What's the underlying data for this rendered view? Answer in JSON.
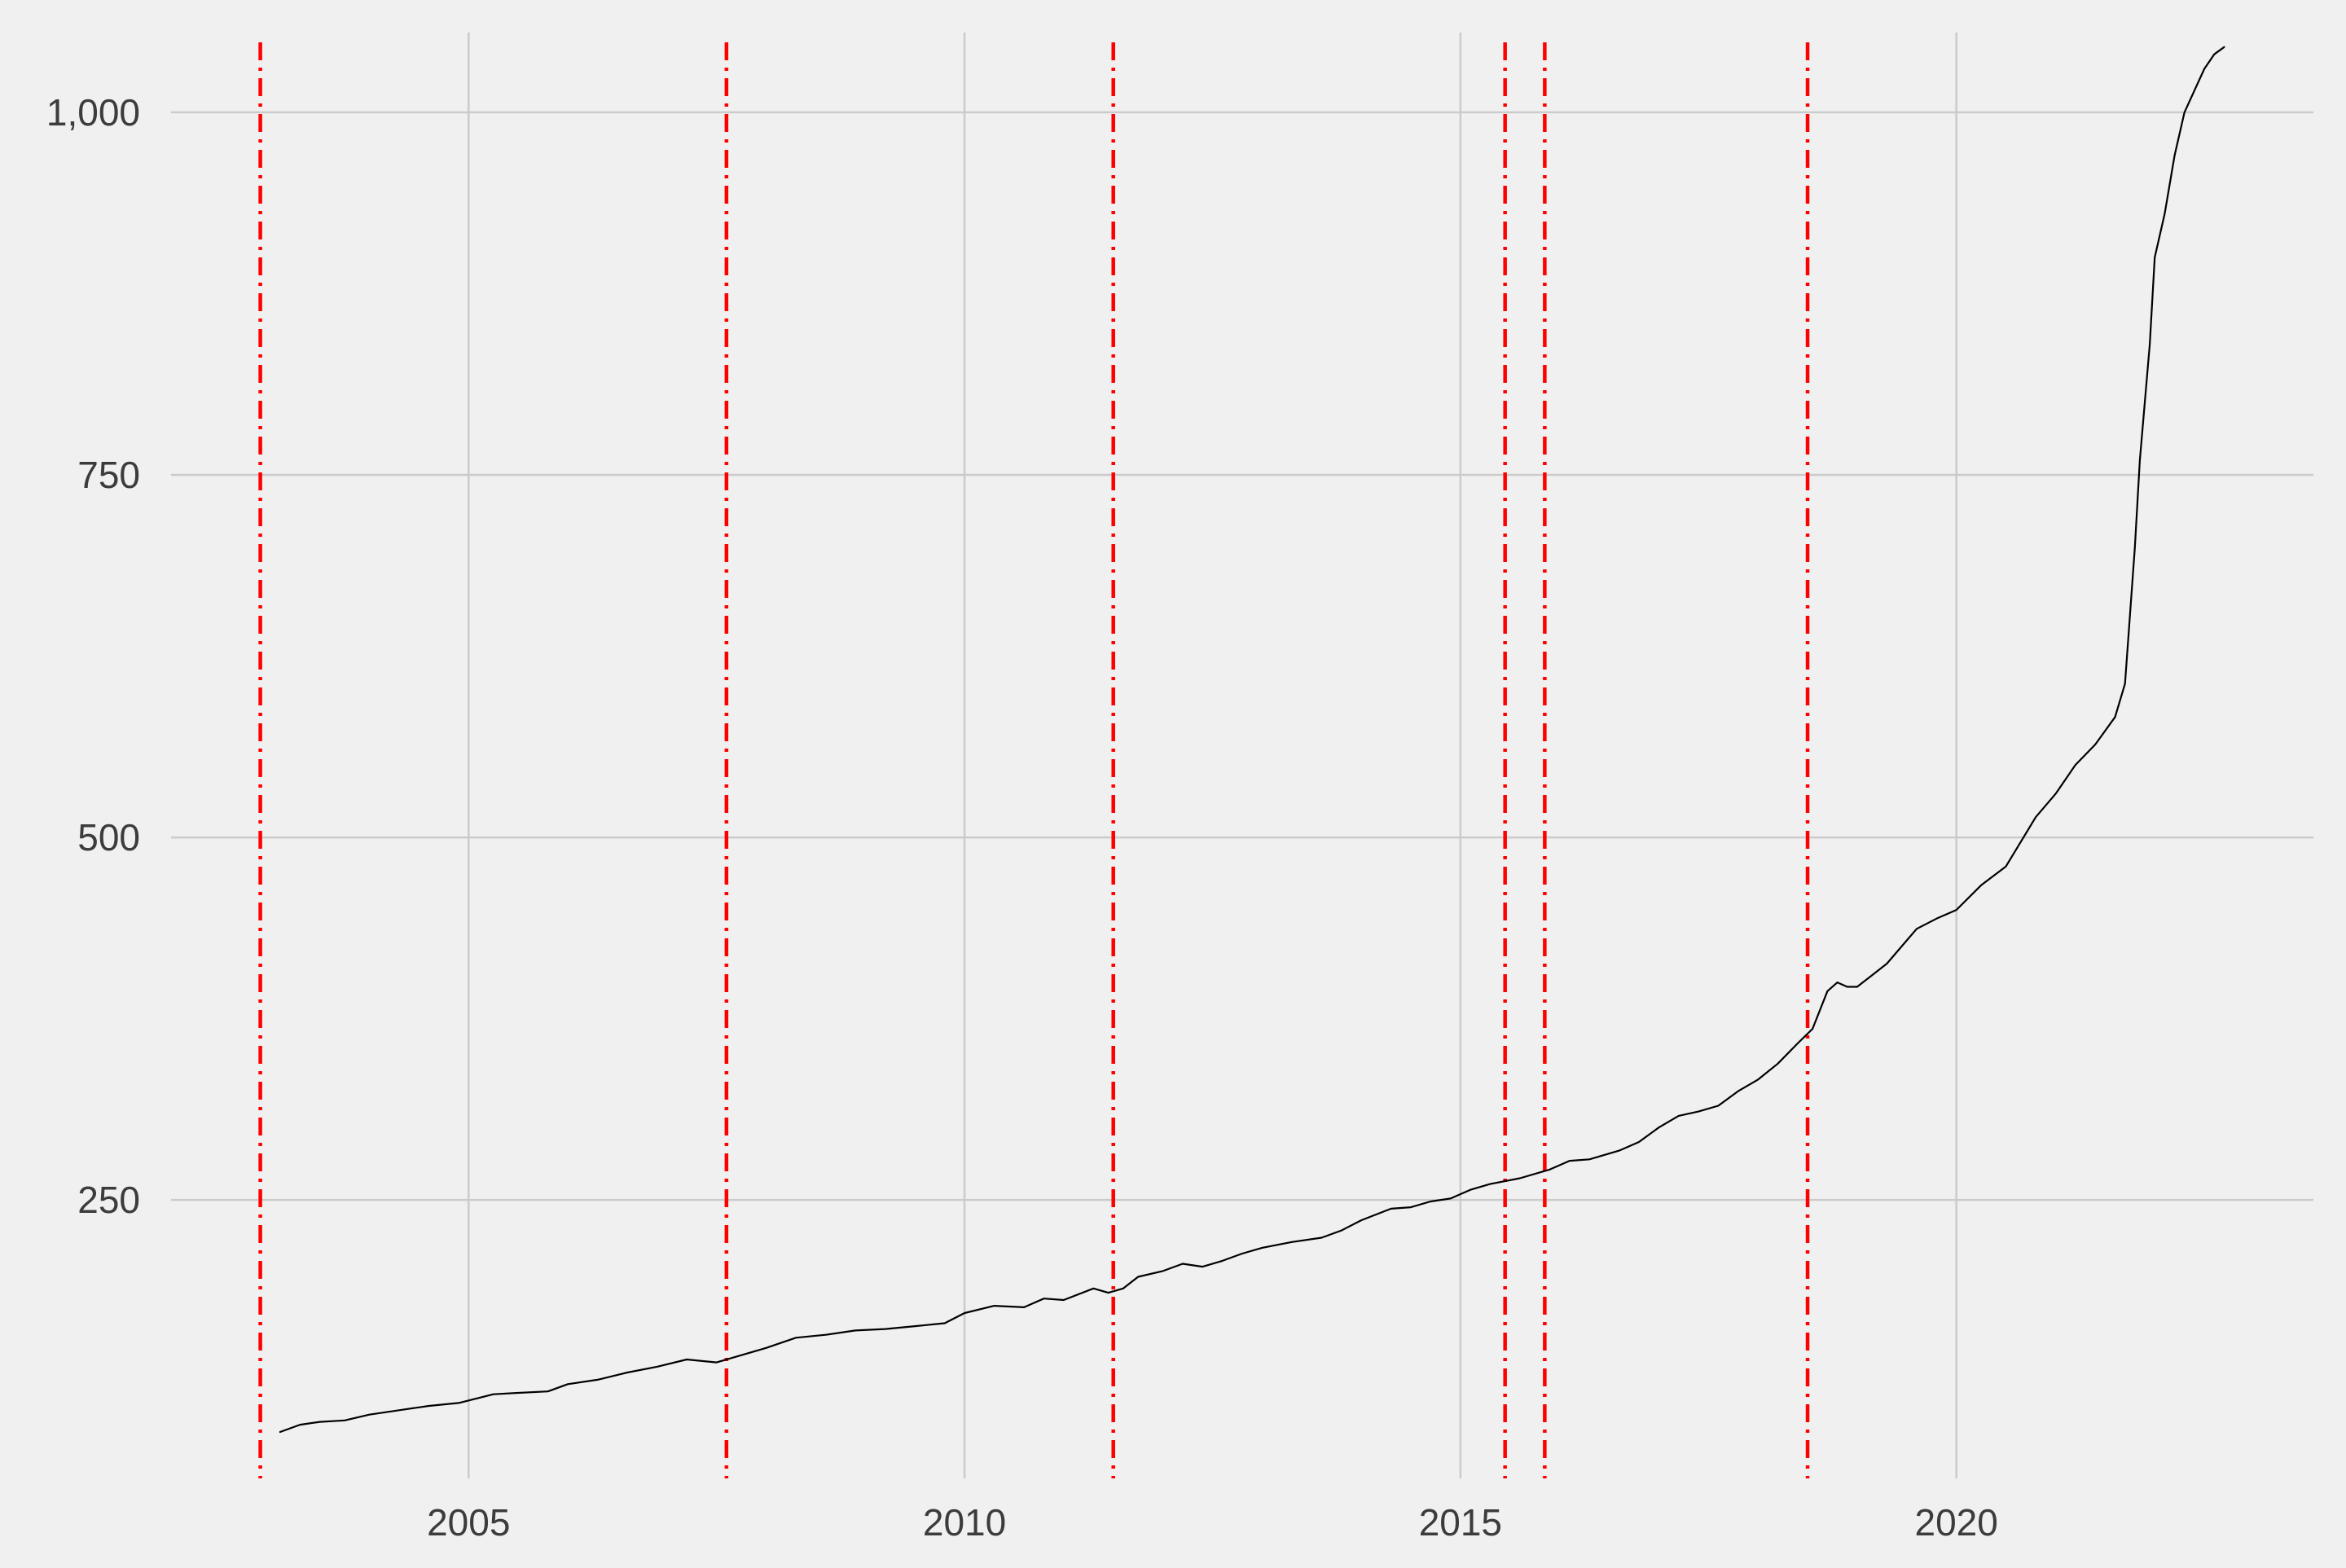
{
  "chart_data": {
    "type": "line",
    "title": "",
    "xlabel": "",
    "ylabel": "",
    "xlim": [
      2002.0,
      2023.6
    ],
    "ylim": [
      58,
      1055
    ],
    "x_ticks": [
      2005,
      2010,
      2015,
      2020
    ],
    "x_tick_labels": [
      "2005",
      "2010",
      "2015",
      "2020"
    ],
    "y_ticks": [
      250,
      500,
      750,
      1000
    ],
    "y_tick_labels": [
      "250",
      "500",
      "750",
      "1,000"
    ],
    "grid": true,
    "legend": "none",
    "colors": {
      "background": "#f0f0f0",
      "grid": "#cbcbcb",
      "line": "#000000",
      "reference_lines": "#ff0000"
    },
    "reference_lines_x": [
      2002.9,
      2007.6,
      2011.5,
      2015.45,
      2015.85,
      2018.5
    ],
    "series": [
      {
        "x": [
          2003.1,
          2003.3,
          2003.5,
          2003.75,
          2004.0,
          2004.3,
          2004.6,
          2004.9,
          2005.25,
          2005.5,
          2005.8,
          2006.0,
          2006.3,
          2006.6,
          2006.9,
          2007.2,
          2007.5,
          2007.8,
          2008.0,
          2008.3,
          2008.6,
          2008.9,
          2009.2,
          2009.5,
          2009.8,
          2010.0,
          2010.3,
          2010.6,
          2010.8,
          2011.0,
          2011.3,
          2011.45,
          2011.6,
          2011.75,
          2012.0,
          2012.2,
          2012.4,
          2012.6,
          2012.8,
          2013.0,
          2013.3,
          2013.6,
          2013.8,
          2014.0,
          2014.3,
          2014.5,
          2014.7,
          2014.9,
          2015.1,
          2015.3,
          2015.6,
          2015.9,
          2016.1,
          2016.3,
          2016.6,
          2016.8,
          2017.0,
          2017.2,
          2017.4,
          2017.6,
          2017.8,
          2018.0,
          2018.2,
          2018.4,
          2018.55,
          2018.7,
          2018.8,
          2018.9,
          2019.0,
          2019.15,
          2019.3,
          2019.45,
          2019.6,
          2019.8,
          2020.0,
          2020.25,
          2020.5,
          2020.8,
          2021.0,
          2021.2,
          2021.4,
          2021.6,
          2021.7,
          2021.8,
          2021.85,
          2021.9,
          2021.95,
          2022.0,
          2022.1,
          2022.2,
          2022.3,
          2022.4,
          2022.5,
          2022.6,
          2022.7
        ],
        "y": [
          90,
          95,
          97,
          98,
          102,
          105,
          108,
          110,
          116,
          117,
          118,
          123,
          126,
          131,
          135,
          140,
          138,
          144,
          148,
          155,
          157,
          160,
          161,
          163,
          165,
          172,
          177,
          176,
          182,
          181,
          189,
          186,
          189,
          197,
          201,
          206,
          204,
          208,
          213,
          217,
          221,
          224,
          229,
          236,
          244,
          245,
          249,
          251,
          257,
          261,
          265,
          271,
          277,
          278,
          284,
          290,
          300,
          308,
          311,
          315,
          325,
          333,
          344,
          358,
          368,
          394,
          400,
          397,
          397,
          405,
          413,
          425,
          437,
          444,
          450,
          467,
          480,
          514,
          530,
          550,
          564,
          583,
          606,
          700,
          760,
          800,
          840,
          900,
          930,
          970,
          1000,
          1015,
          1030,
          1040,
          1045
        ],
        "line_style": "solid"
      }
    ]
  }
}
